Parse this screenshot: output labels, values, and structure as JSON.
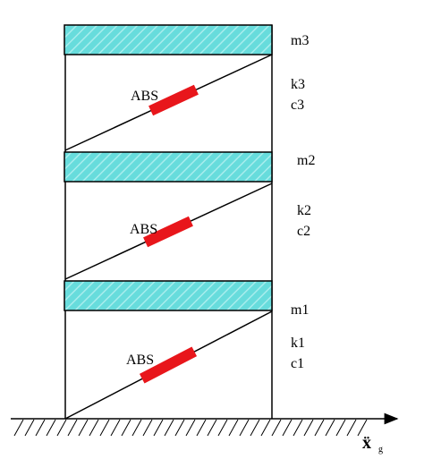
{
  "colors": {
    "slab_fill": "#67dcdc",
    "slab_hatch": "#a8eded",
    "damper": "#e8161b",
    "line": "#000000"
  },
  "floors": [
    {
      "mass_label": "m3",
      "stiffness_label": "k3",
      "damping_label": "c3",
      "damper_label": "ABS"
    },
    {
      "mass_label": "m2",
      "stiffness_label": "k2",
      "damping_label": "c2",
      "damper_label": "ABS"
    },
    {
      "mass_label": "m1",
      "stiffness_label": "k1",
      "damping_label": "c1",
      "damper_label": "ABS"
    }
  ],
  "ground_motion": {
    "symbol": "ẍ",
    "subscript": "g"
  }
}
